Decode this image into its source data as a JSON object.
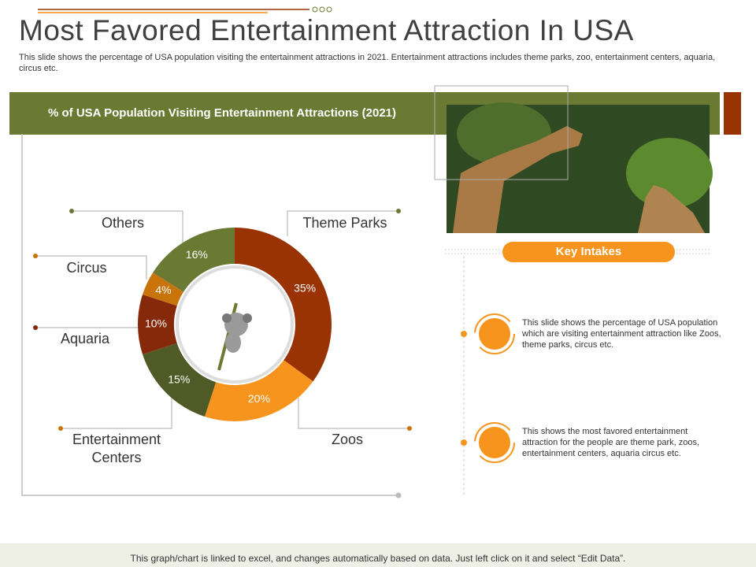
{
  "title": "Most Favored Entertainment Attraction In USA",
  "subtitle": "This slide shows the percentage of USA population visiting the entertainment attractions in 2021. Entertainment attractions includes theme parks, zoo, entertainment centers, aquaria, circus etc.",
  "chart_data": {
    "type": "donut",
    "title": "% of USA Population Visiting Entertainment Attractions (2021)",
    "categories": [
      "Theme Parks",
      "Zoos",
      "Entertainment Centers",
      "Aquaria",
      "Circus",
      "Others"
    ],
    "values": [
      35,
      20,
      15,
      10,
      4,
      16
    ],
    "value_labels": [
      "35%",
      "20%",
      "15%",
      "10%",
      "4%",
      "16%"
    ],
    "colors": [
      "#9a3304",
      "#f7941d",
      "#4f5a26",
      "#86290a",
      "#c9740a",
      "#6b7a33"
    ]
  },
  "key_intakes": {
    "title": "Key Intakes",
    "items": [
      "This slide shows the percentage of USA population which are visiting entertainment attraction like Zoos, theme parks, circus etc.",
      "This shows the most favored entertainment attraction for the people are theme park, zoos, entertainment centers, aquaria circus etc."
    ]
  },
  "footer": "This graph/chart is linked to excel, and changes automatically based on data. Just left click on it and select “Edit Data”."
}
